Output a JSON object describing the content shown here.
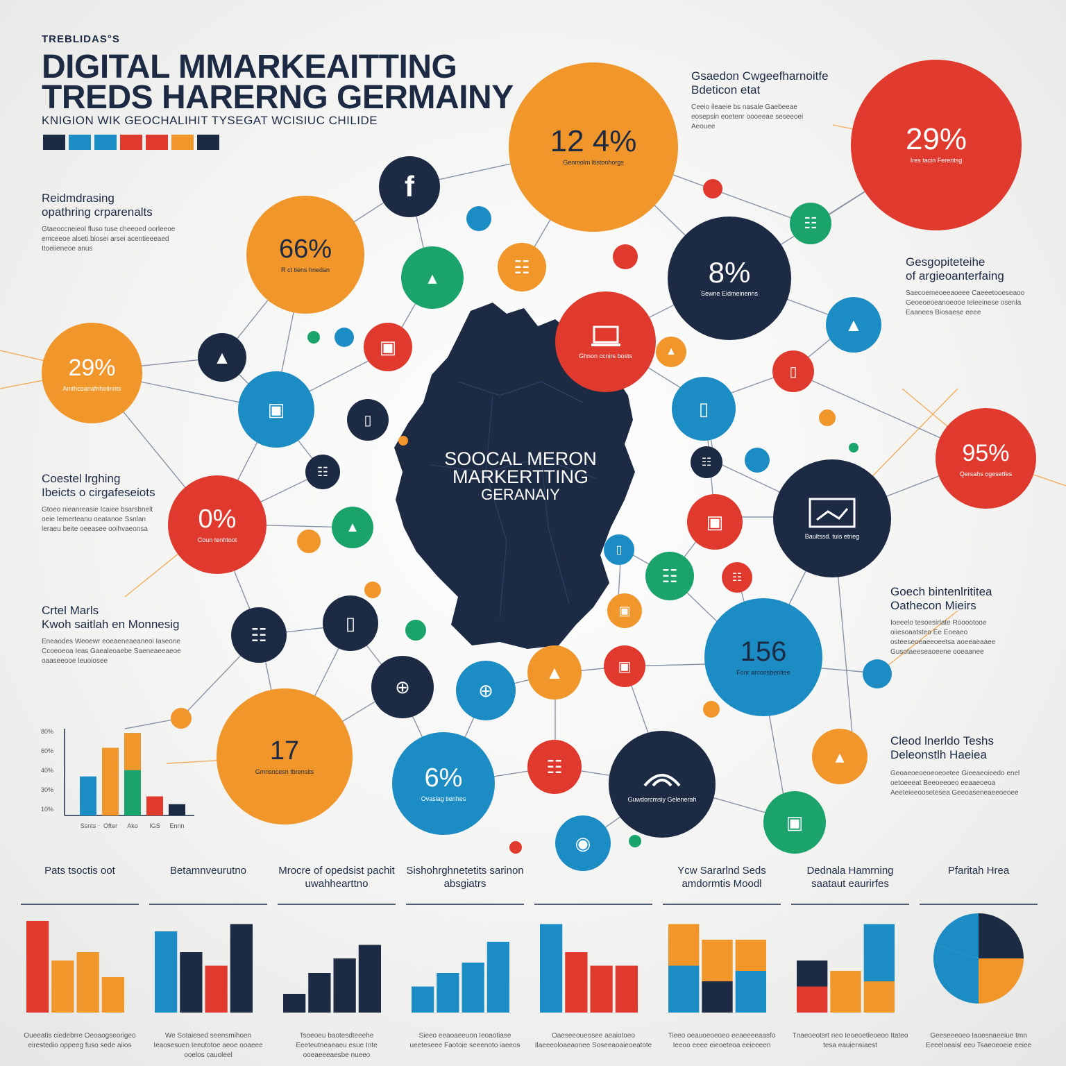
{
  "header": {
    "kicker": "TREBLIDAS°S",
    "title_line1": "DIGITAL MMARKEAITTING",
    "title_line2": "TREDS HARERNG GERMAINY",
    "subtitle": "KNIGION WIK GEOCHALIHIT TYSEGAT WCISIUC CHILIDE"
  },
  "colors": {
    "navy": "#1c2a44",
    "blue": "#1b8cc4",
    "orange": "#f0962a",
    "red": "#e03a2e",
    "green": "#1aa36a",
    "palette": [
      "#1c2a44",
      "#1b8cc4",
      "#1b8cc4",
      "#e03a2e",
      "#e03a2e",
      "#f0962a",
      "#1c2a44"
    ]
  },
  "center_map": {
    "line1": "SOOCAL MERON",
    "line2": "MARKERTTING",
    "line3": "GERANAIY"
  },
  "bubbles": [
    {
      "key": "b1",
      "value": "12 4%",
      "caption": "Genmolm ltistonhorgs"
    },
    {
      "key": "b2",
      "value": "29%",
      "caption": "Ires tacin Ferentsg"
    },
    {
      "key": "b3",
      "value": "66%",
      "caption": "R ct tiens hnedan"
    },
    {
      "key": "b4",
      "value": "29%",
      "caption": "Amthcoanafnhetinnts"
    },
    {
      "key": "b5",
      "value": "8%",
      "caption": "Sewne Eidmeinenns"
    },
    {
      "key": "b6",
      "value": "95%",
      "caption": "Qersahs ogesetfes"
    },
    {
      "key": "b7",
      "value": "0%",
      "caption": "Coun tenhtoot"
    },
    {
      "key": "b8",
      "value": "156",
      "caption": "Fonr arconsbenitee"
    },
    {
      "key": "b9",
      "value": "17",
      "caption": "Gmnsncesn tbrensits"
    },
    {
      "key": "b10",
      "value": "6%",
      "caption": "Ovasiag tienhes"
    },
    {
      "key": "b11",
      "value": "",
      "caption": "Guwdorcmsiy Gelenerah"
    },
    {
      "key": "b12",
      "value": "",
      "caption": "Ghnon ccnirs bosts"
    },
    {
      "key": "b13",
      "value": "",
      "caption": "Baultssd. tuis etneg"
    }
  ],
  "side_notes": {
    "left1": {
      "heading_1": "Reidmdrasing",
      "heading_2": "opathring crparenalts",
      "body": "Gtaeoccneieol fluso tuse cheeoed oorleeoe emceeoe alseti biosei arsei acentieeeaed Itoeiieneoe anus"
    },
    "left2": {
      "heading_1": "Coestel lrghing",
      "heading_2": "Ibeicts o cirgafeseiots",
      "body": "Gtoeo nieanreasie Icaiee bsarsbnelt oeie Iemerteanu oeatanoe Ssnlan leraeu beite oeeasee ooihvaeonsa"
    },
    "left3": {
      "heading_1": "Crtel Marls",
      "heading_2": "Kwoh saitlah en Monnesig",
      "body": "Eneaodes Weoewr eoeaeneaeaneoi Iaseone Ccoeoeoa Ieas Gaealeoaebe Saeneaeeaeoe oaaseeooe leuoiosee"
    },
    "right1": {
      "heading_1": "Gsaedon Cwgeefharnoitfe",
      "heading_2": "Bdeticon etat",
      "body": "Ceeio ileaeie bs nasale Gaebeeae eosepsin eoetenr oooeeae seseeoei Aeouee"
    },
    "right2": {
      "heading_1": "Gesgopiteteihe",
      "heading_2": "of argieoanterfaing",
      "body": "Saecoemeoeeaoeee Caeeetooeseaoo Geoeoeoeanoeooe Ieleeinese osenla Eaanees Biosaese eeee"
    },
    "right3": {
      "heading_1": "Goech bintenlrititea",
      "heading_2": "Oathecon Mieirs",
      "body": "Ioeeelo tesoesirlate Rooootooe oiiesoaatsteo Ee Eoeaeo osteeseoeaeeoeetsa aoeeaeaaee Gusotaeeseaoeene ooeaanee"
    },
    "right4": {
      "heading_1": "Cleod lnerldo Teshs",
      "heading_2": "Deleonstlh Haeiea",
      "body": "Geoaeoeoeoeoeoetee Gieeaeoieedo enel oetoeeeat Beeoeeoeo eeaaeoeoa Aeeteieeoosetesea Geeoaseneaeeoeoee"
    }
  },
  "small_chart": {
    "y_ticks": [
      "80%",
      "60%",
      "40%",
      "30%",
      "10%"
    ],
    "categories": [
      "Ssnts",
      "Ofter",
      "Ako",
      "IGS",
      "Ennn"
    ],
    "values": [
      45,
      78,
      95,
      22,
      13
    ]
  },
  "bottom_charts": [
    {
      "title": "Pats tsoctis oot",
      "foot": "Oueeatis ciedebrre Oeoaogseorigeo eirestedio oppeeg fuso sede aiios",
      "values": [
        88,
        50,
        58,
        34
      ],
      "colors": [
        "#e03a2e",
        "#f0962a",
        "#f0962a",
        "#f0962a"
      ]
    },
    {
      "title": "Betamnveurutno",
      "foot": "We Sotaiesed seensmihoen Ieaosesuen Ieeutotoe aeoe ooaeee ooelos cauoleel",
      "values": [
        78,
        58,
        45,
        85
      ],
      "colors": [
        "#1b8cc4",
        "#1c2a44",
        "#e03a2e",
        "#1c2a44"
      ]
    },
    {
      "title": "Mrocre of opedsist pachit uwahhearttno",
      "foot": "Tsoeoeu baotesdteeehe Eeeteutneaeaeu esue Inte ooeaeeeaesbe nueeo",
      "values": [
        18,
        38,
        52,
        65
      ],
      "colors": [
        "#1c2a44",
        "#1c2a44",
        "#1c2a44",
        "#1c2a44"
      ]
    },
    {
      "title": "Sishohrghnetetits sarinon absgiatrs",
      "foot": "Sieeo eeaoaeeuon Ieoaotiase ueeteseee Faotoie seeenoto iaeeos",
      "values": [
        25,
        38,
        48,
        68
      ],
      "colors": [
        "#1b8cc4",
        "#1b8cc4",
        "#1b8cc4",
        "#1b8cc4"
      ]
    },
    {
      "title": "",
      "foot": "Oaeseeoueosee aeaiotoeo Ilaeeeoloaeaonee Soseeaoaieoeatote",
      "values": [
        85,
        58,
        45,
        45
      ],
      "colors": [
        "#1b8cc4",
        "#e03a2e",
        "#e03a2e",
        "#e03a2e"
      ]
    },
    {
      "title": "Ycw Sararlnd Seds amdormtis Moodl",
      "foot": "Tieeo oeauoeoeoeo eeaeeeeaasfo Ieeoo eeee eieoeteoa eeieeeen",
      "values": [
        [
          45,
          40
        ],
        [
          30,
          40
        ],
        [
          40,
          30
        ]
      ],
      "colors": [
        [
          "#1b8cc4",
          "#f0962a"
        ],
        [
          "#1c2a44",
          "#f0962a"
        ],
        [
          "#1b8cc4",
          "#f0962a"
        ]
      ]
    },
    {
      "title": "Dednala Hamrning saataut eaurirfes",
      "foot": "Tnaeoeotsrt neo Ieoeoetleoeoo Itateo tesa eauiensiaest",
      "values": [
        [
          25,
          25
        ],
        [
          40,
          0
        ],
        [
          30,
          55
        ]
      ],
      "colors": [
        [
          "#e03a2e",
          "#1c2a44"
        ],
        [
          "#f0962a",
          "#f0962a"
        ],
        [
          "#f0962a",
          "#1b8cc4"
        ]
      ]
    },
    {
      "title": "Pfaritah Hrea",
      "foot": "Geeseeeoeo Iaoesnaeeiue tmn Eeeeloeaisl eeu Tsaeoeoeie eeiee",
      "pie": [
        25,
        25,
        30,
        20
      ],
      "colors": [
        "#1c2a44",
        "#f0962a",
        "#1b8cc4",
        "#1b8cc4"
      ]
    }
  ],
  "icons": [
    {
      "name": "facebook-icon",
      "glyph": "f"
    },
    {
      "name": "chat-bubble-icon",
      "glyph": "▲"
    },
    {
      "name": "monitor-icon",
      "glyph": "▣"
    },
    {
      "name": "camera-icon",
      "glyph": "◉"
    },
    {
      "name": "document-icon",
      "glyph": "☷"
    },
    {
      "name": "phone-icon",
      "glyph": "▯"
    },
    {
      "name": "globe-icon",
      "glyph": "⊕"
    },
    {
      "name": "thumb-icon",
      "glyph": "▴"
    }
  ]
}
